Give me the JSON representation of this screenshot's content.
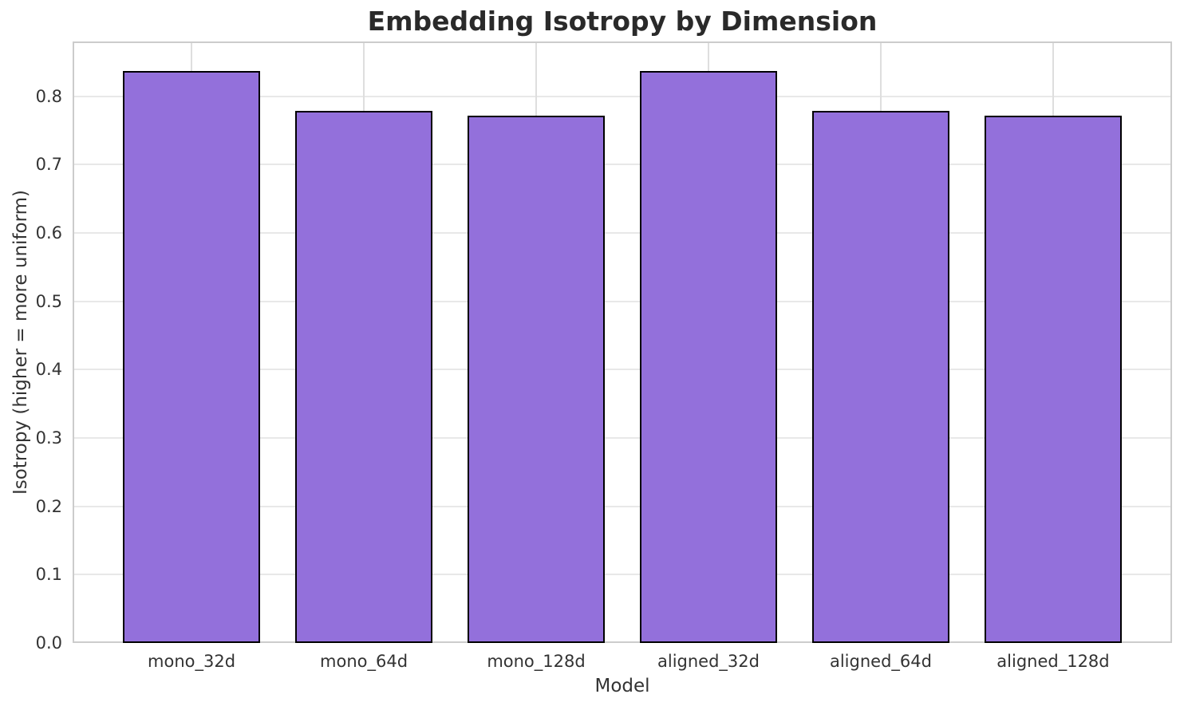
{
  "chart_data": {
    "type": "bar",
    "title": "Embedding Isotropy by Dimension",
    "xlabel": "Model",
    "ylabel": "Isotropy (higher = more uniform)",
    "categories": [
      "mono_32d",
      "mono_64d",
      "mono_128d",
      "aligned_32d",
      "aligned_64d",
      "aligned_128d"
    ],
    "values": [
      0.837,
      0.779,
      0.772,
      0.837,
      0.779,
      0.772
    ],
    "ylim": [
      0,
      0.88
    ],
    "xlim": [
      -0.69,
      5.69
    ],
    "yticks": [
      0.0,
      0.1,
      0.2,
      0.3,
      0.4,
      0.5,
      0.6,
      0.7,
      0.8
    ],
    "ytick_labels": [
      "0.0",
      "0.1",
      "0.2",
      "0.3",
      "0.4",
      "0.5",
      "0.6",
      "0.7",
      "0.8"
    ],
    "grid": true,
    "legend": null,
    "bar_width": 0.8,
    "colors": {
      "bar_fill": "#9370DB",
      "bar_edge": "#000000",
      "grid_h": "#e8e8e8",
      "grid_v": "#dedede",
      "spine": "#cccccc",
      "text": "#333333",
      "title_text": "#2a2a2a",
      "background": "#ffffff"
    }
  }
}
